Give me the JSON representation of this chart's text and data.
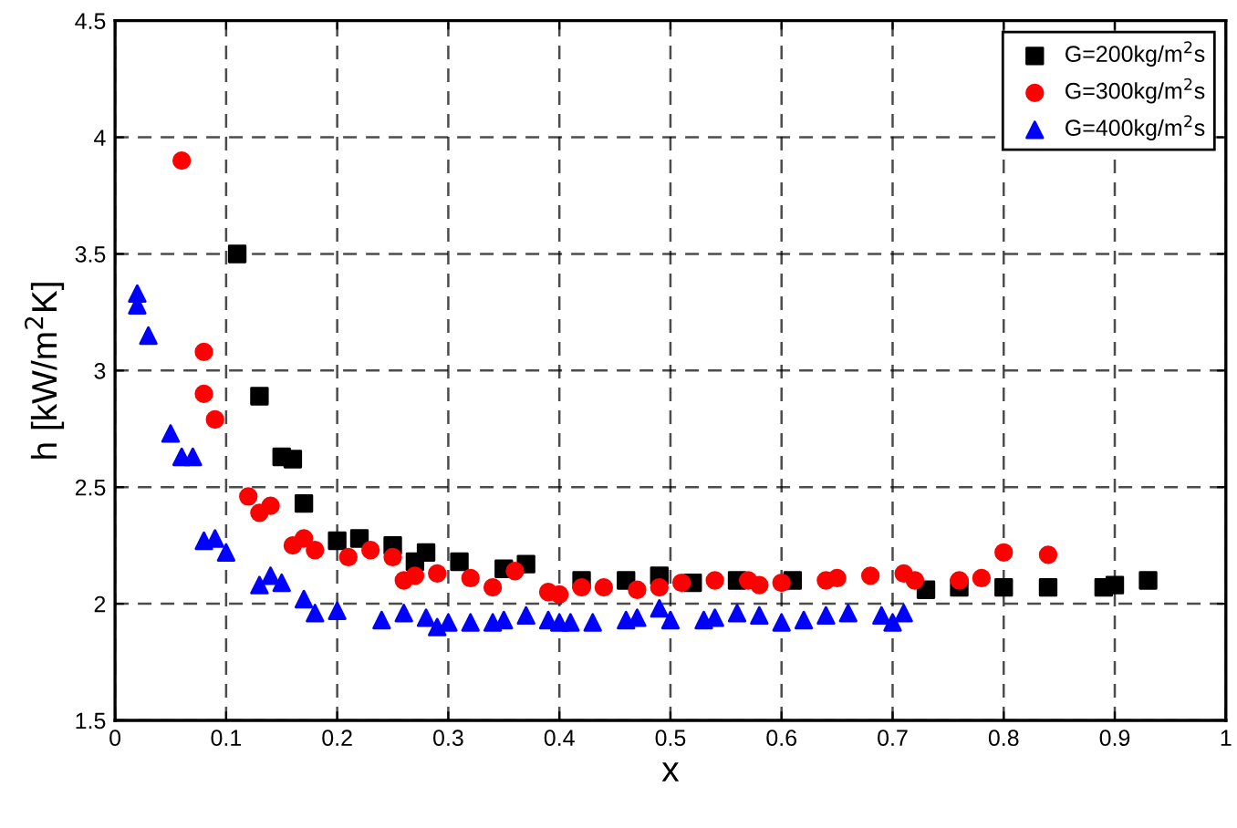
{
  "chart_data": {
    "type": "scatter",
    "xlabel": "x",
    "ylabel": "h [kW/m$^{2}$K]",
    "xlim": [
      0,
      1
    ],
    "xticks": [
      0,
      0.1,
      0.2,
      0.3,
      0.4,
      0.5,
      0.6,
      0.7,
      0.8,
      0.9,
      1
    ],
    "ylim": [
      1.5,
      4.5
    ],
    "yticks": [
      1.5,
      2,
      2.5,
      3,
      3.5,
      4,
      4.5
    ],
    "grid": true,
    "legend": "top right",
    "series": [
      {
        "name": "G=200kg/m$^{2}$s",
        "color": "#000000",
        "marker": "square",
        "x": [
          0.11,
          0.13,
          0.15,
          0.16,
          0.17,
          0.2,
          0.22,
          0.25,
          0.27,
          0.28,
          0.31,
          0.35,
          0.37,
          0.42,
          0.46,
          0.49,
          0.52,
          0.56,
          0.61,
          0.73,
          0.76,
          0.8,
          0.84,
          0.89,
          0.9,
          0.93
        ],
        "values": [
          3.5,
          2.89,
          2.63,
          2.62,
          2.43,
          2.27,
          2.28,
          2.25,
          2.18,
          2.22,
          2.18,
          2.15,
          2.17,
          2.1,
          2.1,
          2.12,
          2.09,
          2.1,
          2.1,
          2.06,
          2.07,
          2.07,
          2.07,
          2.07,
          2.08,
          2.1
        ]
      },
      {
        "name": "G=300kg/m$^{2}$s",
        "color": "#ff0000",
        "marker": "circle",
        "x": [
          0.06,
          0.08,
          0.08,
          0.09,
          0.12,
          0.13,
          0.14,
          0.16,
          0.17,
          0.18,
          0.21,
          0.23,
          0.25,
          0.26,
          0.27,
          0.29,
          0.32,
          0.34,
          0.36,
          0.39,
          0.4,
          0.42,
          0.44,
          0.47,
          0.49,
          0.51,
          0.54,
          0.57,
          0.58,
          0.6,
          0.64,
          0.65,
          0.68,
          0.71,
          0.72,
          0.76,
          0.78,
          0.8,
          0.84
        ],
        "values": [
          3.9,
          3.08,
          2.9,
          2.79,
          2.46,
          2.39,
          2.42,
          2.25,
          2.28,
          2.23,
          2.2,
          2.23,
          2.2,
          2.1,
          2.12,
          2.13,
          2.11,
          2.07,
          2.14,
          2.05,
          2.04,
          2.07,
          2.07,
          2.06,
          2.07,
          2.09,
          2.1,
          2.1,
          2.08,
          2.09,
          2.1,
          2.11,
          2.12,
          2.13,
          2.1,
          2.1,
          2.11,
          2.22,
          2.21
        ]
      },
      {
        "name": "G=400kg/m$^{2}$s",
        "color": "#0000ff",
        "marker": "triangle",
        "x": [
          0.02,
          0.02,
          0.03,
          0.05,
          0.06,
          0.07,
          0.08,
          0.09,
          0.1,
          0.13,
          0.14,
          0.15,
          0.17,
          0.18,
          0.2,
          0.24,
          0.26,
          0.28,
          0.29,
          0.3,
          0.32,
          0.34,
          0.35,
          0.37,
          0.39,
          0.4,
          0.41,
          0.43,
          0.46,
          0.47,
          0.49,
          0.5,
          0.53,
          0.54,
          0.56,
          0.58,
          0.6,
          0.62,
          0.64,
          0.66,
          0.69,
          0.7,
          0.71
        ],
        "values": [
          3.33,
          3.28,
          3.15,
          2.73,
          2.63,
          2.63,
          2.27,
          2.28,
          2.22,
          2.08,
          2.12,
          2.09,
          2.02,
          1.96,
          1.97,
          1.93,
          1.96,
          1.94,
          1.9,
          1.92,
          1.92,
          1.92,
          1.93,
          1.95,
          1.93,
          1.92,
          1.92,
          1.92,
          1.93,
          1.94,
          1.98,
          1.93,
          1.93,
          1.94,
          1.96,
          1.95,
          1.92,
          1.93,
          1.95,
          1.96,
          1.95,
          1.92,
          1.96
        ]
      }
    ]
  }
}
